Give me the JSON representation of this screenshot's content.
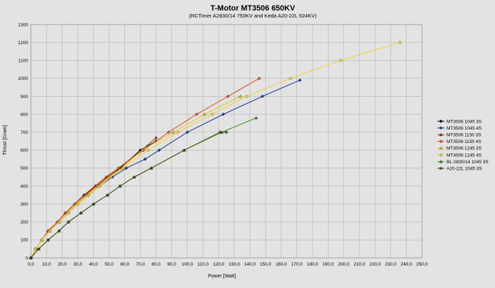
{
  "chart_data": {
    "type": "line",
    "title": "T-Motor MT3506 650KV",
    "subtitle": "(RCTimer A2830/14 750KV and Keda A20-22L 924KV)",
    "xlabel": "Power [Watt]",
    "ylabel": "Thrust [Gram]",
    "xlim": [
      0,
      250
    ],
    "ylim": [
      0,
      1300
    ],
    "xticks": [
      "0,0",
      "10,0",
      "20,0",
      "30,0",
      "40,0",
      "50,0",
      "60,0",
      "70,0",
      "80,0",
      "90,0",
      "100,0",
      "110,0",
      "120,0",
      "130,0",
      "140,0",
      "150,0",
      "160,0",
      "170,0",
      "180,0",
      "190,0",
      "200,0",
      "210,0",
      "220,0",
      "230,0",
      "240,0",
      "250,0"
    ],
    "yticks": [
      "0",
      "100",
      "200",
      "300",
      "400",
      "500",
      "600",
      "700",
      "800",
      "900",
      "1000",
      "1100",
      "1200",
      "1300"
    ],
    "grid": true,
    "legend": "right",
    "series": [
      {
        "name": "MT3506 1045 3S",
        "color": "#000000",
        "marker": "diamond",
        "x": [
          0,
          3,
          7,
          11,
          17,
          22,
          28,
          34,
          42,
          50,
          57,
          70,
          80
        ],
        "y": [
          0,
          50,
          100,
          150,
          200,
          250,
          300,
          350,
          400,
          450,
          500,
          600,
          650
        ]
      },
      {
        "name": "MT3506 1045 4S",
        "color": "#1f3f8c",
        "marker": "diamond",
        "x": [
          0,
          3,
          7,
          12,
          18,
          24,
          30,
          37,
          44,
          52,
          61,
          73,
          82,
          100,
          123,
          148,
          172
        ],
        "y": [
          0,
          50,
          100,
          150,
          200,
          250,
          300,
          350,
          400,
          450,
          500,
          550,
          600,
          700,
          800,
          900,
          990
        ]
      },
      {
        "name": "MT3506 1150 3S",
        "color": "#a33a1a",
        "marker": "triangle",
        "x": [
          0,
          3,
          7,
          11,
          17,
          22,
          28,
          34,
          41,
          48,
          56,
          71,
          80
        ],
        "y": [
          0,
          50,
          100,
          150,
          200,
          250,
          300,
          350,
          400,
          450,
          500,
          600,
          670
        ]
      },
      {
        "name": "MT3506 1150 4S",
        "color": "#d9542a",
        "marker": "diamond",
        "x": [
          0,
          3,
          7,
          11,
          17,
          22,
          28,
          35,
          42,
          49,
          56,
          72,
          88,
          106,
          126,
          146
        ],
        "y": [
          0,
          50,
          100,
          150,
          200,
          250,
          300,
          350,
          400,
          450,
          500,
          600,
          700,
          800,
          900,
          1000
        ]
      },
      {
        "name": "MT3506 1245 3S",
        "color": "#e3c52a",
        "marker": "triangle",
        "x": [
          0,
          3,
          7,
          12,
          18,
          23,
          29,
          36,
          43,
          50,
          58,
          71,
          91,
          111,
          134
        ],
        "y": [
          0,
          50,
          100,
          150,
          200,
          250,
          300,
          350,
          400,
          450,
          500,
          600,
          700,
          800,
          900
        ]
      },
      {
        "name": "MT3506 1245 4S",
        "color": "#f0d23c",
        "marker": "diamond",
        "x": [
          0,
          3,
          7,
          12,
          18,
          24,
          30,
          37,
          44,
          51,
          59,
          75,
          94,
          116,
          138,
          166,
          198,
          236
        ],
        "y": [
          0,
          50,
          100,
          150,
          200,
          250,
          300,
          350,
          400,
          450,
          500,
          600,
          700,
          800,
          900,
          1000,
          1100,
          1200
        ]
      },
      {
        "name": "BL-2830/14 1045 3S",
        "color": "#4e8a2e",
        "marker": "triangle",
        "x": [
          0,
          5,
          11,
          18,
          24,
          32,
          40,
          49,
          57,
          66,
          77,
          98,
          122,
          144
        ],
        "y": [
          0,
          50,
          100,
          150,
          200,
          250,
          300,
          350,
          400,
          450,
          500,
          600,
          700,
          780
        ]
      },
      {
        "name": "A20-22L 1045 3S",
        "color": "#3a5a1a",
        "marker": "star",
        "x": [
          0,
          5,
          11,
          18,
          24,
          32,
          40,
          49,
          57,
          66,
          77,
          98,
          121,
          125
        ],
        "y": [
          0,
          50,
          100,
          150,
          200,
          250,
          300,
          350,
          400,
          450,
          500,
          600,
          700,
          700
        ]
      }
    ]
  }
}
